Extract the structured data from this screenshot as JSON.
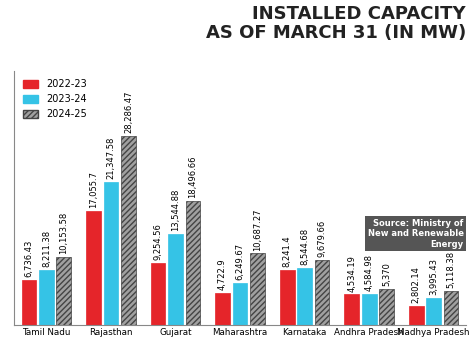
{
  "chart_data": {
    "type": "bar",
    "title": "INSTALLED CAPACITY\nAS OF MARCH 31 (IN MW)",
    "source": "Source: Ministry of\nNew and Renewable\nEnergy",
    "categories": [
      "Tamil Nadu",
      "Rajasthan",
      "Gujarat",
      "Maharashtra",
      "Karnataka",
      "Andhra Pradesh",
      "Madhya Pradesh"
    ],
    "series": [
      {
        "name": "2022-23",
        "color": "#e5252a",
        "values": [
          6736.43,
          17055.7,
          9254.56,
          4722.9,
          8241.4,
          4534.19,
          2802.14
        ],
        "value_labels": [
          "6,736.43",
          "17,055.7",
          "9,254.56",
          "4,722.9",
          "8,241.4",
          "4,534.19",
          "2,802.14"
        ]
      },
      {
        "name": "2023-24",
        "color": "#35c3e6",
        "values": [
          8211.38,
          21347.58,
          13544.88,
          6249.67,
          8544.68,
          4584.98,
          3995.43
        ],
        "value_labels": [
          "8,211.38",
          "21,347.58",
          "13,544.88",
          "6,249.67",
          "8,544.68",
          "4,584.98",
          "3,995.43"
        ]
      },
      {
        "name": "2024-25",
        "color": "#a0a0a0",
        "values": [
          10153.58,
          28286.47,
          18496.66,
          10687.27,
          9679.66,
          5370,
          5118.38
        ],
        "value_labels": [
          "10,153.58",
          "28,286.47",
          "18,496.66",
          "10,687.27",
          "9,679.66",
          "5,370",
          "5,118.38"
        ]
      }
    ],
    "ylim": [
      0,
      38000
    ],
    "yticks": [],
    "grid": false,
    "legend": "upper left",
    "data_labels": true,
    "tick_labels": "x"
  }
}
